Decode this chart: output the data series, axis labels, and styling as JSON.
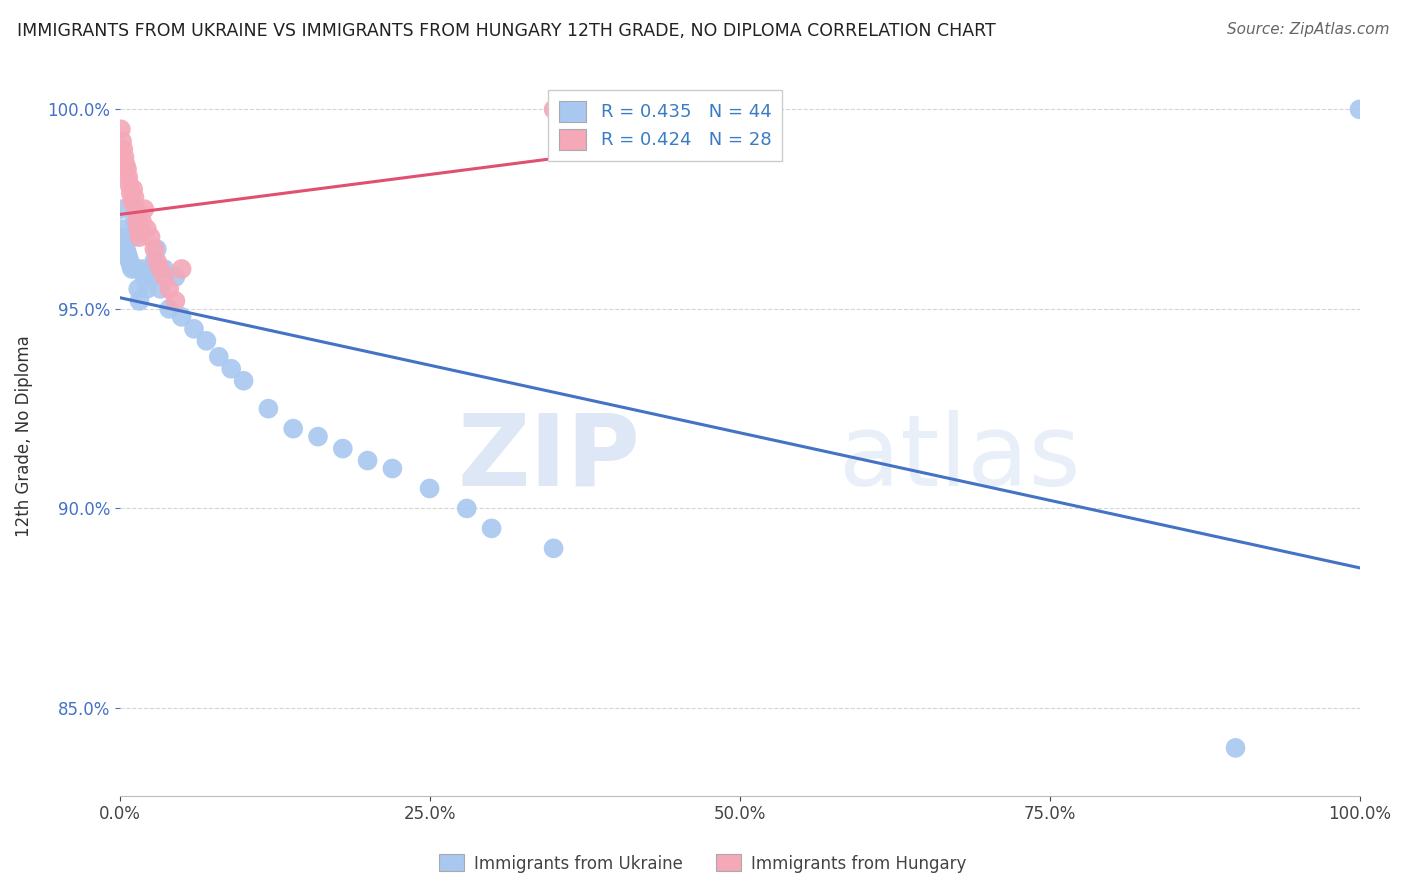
{
  "title": "IMMIGRANTS FROM UKRAINE VS IMMIGRANTS FROM HUNGARY 12TH GRADE, NO DIPLOMA CORRELATION CHART",
  "source": "Source: ZipAtlas.com",
  "label_ukraine": "Immigrants from Ukraine",
  "label_hungary": "Immigrants from Hungary",
  "ylabel": "12th Grade, No Diploma",
  "R_ukraine": 0.435,
  "N_ukraine": 44,
  "R_hungary": 0.424,
  "N_hungary": 28,
  "ukraine_color": "#A8C8F0",
  "hungary_color": "#F4A8B8",
  "ukraine_line_color": "#4472C4",
  "hungary_line_color": "#E05070",
  "ukraine_x": [
    0.001,
    0.002,
    0.003,
    0.004,
    0.005,
    0.006,
    0.007,
    0.008,
    0.009,
    0.01,
    0.011,
    0.012,
    0.013,
    0.014,
    0.015,
    0.016,
    0.018,
    0.02,
    0.022,
    0.025,
    0.028,
    0.03,
    0.033,
    0.036,
    0.04,
    0.045,
    0.05,
    0.06,
    0.07,
    0.08,
    0.09,
    0.1,
    0.12,
    0.14,
    0.16,
    0.18,
    0.2,
    0.22,
    0.25,
    0.28,
    0.3,
    0.35,
    0.9,
    1.0
  ],
  "ukraine_y": [
    0.975,
    0.97,
    0.968,
    0.966,
    0.965,
    0.964,
    0.963,
    0.962,
    0.961,
    0.96,
    0.968,
    0.972,
    0.975,
    0.96,
    0.955,
    0.952,
    0.96,
    0.958,
    0.955,
    0.958,
    0.962,
    0.965,
    0.955,
    0.96,
    0.95,
    0.958,
    0.948,
    0.945,
    0.942,
    0.938,
    0.935,
    0.932,
    0.925,
    0.92,
    0.918,
    0.915,
    0.912,
    0.91,
    0.905,
    0.9,
    0.895,
    0.89,
    0.84,
    1.0
  ],
  "hungary_x": [
    0.001,
    0.002,
    0.003,
    0.004,
    0.005,
    0.006,
    0.007,
    0.008,
    0.009,
    0.01,
    0.011,
    0.012,
    0.013,
    0.014,
    0.015,
    0.016,
    0.018,
    0.02,
    0.022,
    0.025,
    0.028,
    0.03,
    0.033,
    0.036,
    0.04,
    0.045,
    0.05,
    0.35
  ],
  "hungary_y": [
    0.995,
    0.992,
    0.99,
    0.988,
    0.986,
    0.985,
    0.983,
    0.981,
    0.979,
    0.977,
    0.98,
    0.978,
    0.975,
    0.972,
    0.97,
    0.968,
    0.972,
    0.975,
    0.97,
    0.968,
    0.965,
    0.962,
    0.96,
    0.958,
    0.955,
    0.952,
    0.96,
    1.0
  ],
  "xlim": [
    0.0,
    1.0
  ],
  "ylim": [
    0.828,
    1.008
  ],
  "yticks": [
    0.85,
    0.9,
    0.95,
    1.0
  ],
  "ytick_labels": [
    "85.0%",
    "90.0%",
    "95.0%",
    "100.0%"
  ],
  "xticks": [
    0.0,
    0.25,
    0.5,
    0.75,
    1.0
  ],
  "xtick_labels": [
    "0.0%",
    "25.0%",
    "50.0%",
    "75.0%",
    "100.0%"
  ],
  "watermark_zip": "ZIP",
  "watermark_atlas": "atlas",
  "background_color": "#FFFFFF",
  "grid_color": "#CCCCCC"
}
